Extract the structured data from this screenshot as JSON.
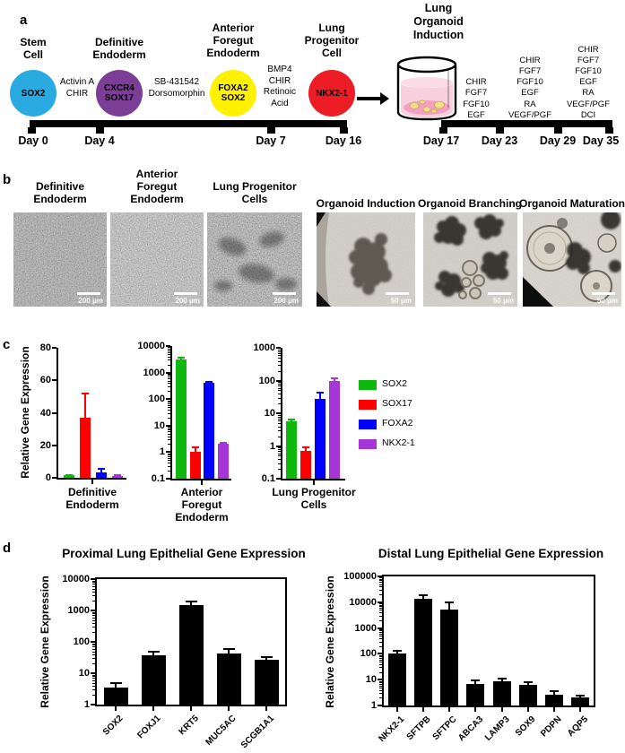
{
  "panels": {
    "a": "a",
    "b": "b",
    "c": "c",
    "d": "d"
  },
  "panel_a": {
    "stages": [
      {
        "title": "Stem\nCell",
        "marker": "SOX2",
        "color": "#29ABE2"
      },
      {
        "title": "Definitive\nEndoderm",
        "marker": "CXCR4\nSOX17",
        "color": "#7C3D97"
      },
      {
        "title": "Anterior\nForegut\nEndoderm",
        "marker": "FOXA2\nSOX2",
        "color": "#FFF100"
      },
      {
        "title": "Lung\nProgenitor\nCell",
        "marker": "NKX2-1",
        "color": "#EE1C25"
      }
    ],
    "treatments": [
      "Activin A\nCHIR",
      "SB-431542\nDorsomorphin",
      "BMP4\nCHIR\nRetinoic\nAcid"
    ],
    "organoid_title": "Lung\nOrganoid\nInduction",
    "factor_columns": [
      [
        "CHIR",
        "FGF7",
        "FGF10",
        "EGF"
      ],
      [
        "CHIR",
        "FGF7",
        "FGF10",
        "EGF",
        "RA",
        "VEGF/PGF"
      ],
      [
        "CHIR",
        "FGF7",
        "FGF10",
        "EGF",
        "RA",
        "VEGF/PGF",
        "DCI"
      ]
    ],
    "timeline1": {
      "days": [
        "Day 0",
        "Day 4",
        "Day 7",
        "Day 16"
      ]
    },
    "timeline2": {
      "days": [
        "Day 17",
        "Day 23",
        "Day 29",
        "Day 35"
      ]
    }
  },
  "panel_b": {
    "monolayers": [
      {
        "label": "Definitive\nEndoderm",
        "scale_bar": "200 μm"
      },
      {
        "label": "Anterior\nForegut\nEndoderm",
        "scale_bar": "200 μm"
      },
      {
        "label": "Lung Progenitor\nCells",
        "scale_bar": "200 μm"
      }
    ],
    "organoids": [
      {
        "label": "Organoid Induction",
        "scale_bar": "50 μm"
      },
      {
        "label": "Organoid Branching",
        "scale_bar": "50 μm"
      },
      {
        "label": "Organoid Maturation",
        "scale_bar": "50 μm"
      }
    ]
  },
  "legend": {
    "position": "right-of-third-chart",
    "entries": [
      {
        "label": "SOX2",
        "color": "#0FB80F"
      },
      {
        "label": "SOX17",
        "color": "#FF0000"
      },
      {
        "label": "FOXA2",
        "color": "#0000FF"
      },
      {
        "label": "NKX2-1",
        "color": "#A535D6"
      }
    ]
  },
  "chart_data": [
    {
      "id": "c-de",
      "type": "bar",
      "scale": "linear",
      "xlabel": "Definitive\nEndoderm",
      "ylabel": "Relative Gene Expression",
      "ylim": [
        0,
        80
      ],
      "yticks": [
        "0",
        "20",
        "40",
        "60",
        "80"
      ],
      "grid": false,
      "series": [
        "SOX2",
        "SOX17",
        "FOXA2",
        "NKX2-1"
      ],
      "colors": [
        "#0FB80F",
        "#FF0000",
        "#0000FF",
        "#A535D6"
      ],
      "values": [
        1.5,
        37,
        3.5,
        1.2
      ],
      "errors": [
        0.4,
        15,
        2,
        0.3
      ]
    },
    {
      "id": "c-afe",
      "type": "bar",
      "scale": "log",
      "xlabel": "Anterior\nForegut\nEndoderm",
      "ylim": [
        0.1,
        10000
      ],
      "yticks": [
        "0.1",
        "1",
        "10",
        "100",
        "1000",
        "10000"
      ],
      "grid": false,
      "series": [
        "SOX2",
        "SOX17",
        "FOXA2",
        "NKX2-1"
      ],
      "colors": [
        "#0FB80F",
        "#FF0000",
        "#0000FF",
        "#A535D6"
      ],
      "values": [
        3000,
        1,
        400,
        2
      ],
      "errors": [
        500,
        0.5,
        60,
        0.3
      ]
    },
    {
      "id": "c-lpc",
      "type": "bar",
      "scale": "log",
      "xlabel": "Lung Progenitor\nCells",
      "ylim": [
        0.1,
        1000
      ],
      "yticks": [
        "0.1",
        "1",
        "10",
        "100",
        "1000"
      ],
      "grid": false,
      "series": [
        "SOX2",
        "SOX17",
        "FOXA2",
        "NKX2-1"
      ],
      "colors": [
        "#0FB80F",
        "#FF0000",
        "#0000FF",
        "#A535D6"
      ],
      "values": [
        5.5,
        0.7,
        28,
        95
      ],
      "errors": [
        0.8,
        0.2,
        14,
        22
      ]
    },
    {
      "id": "d-prox",
      "type": "bar",
      "scale": "log",
      "title": "Proximal Lung Epithelial Gene Expression",
      "ylabel": "Relative Gene Expression",
      "ylim": [
        1,
        10000
      ],
      "yticks": [
        "1",
        "10",
        "100",
        "1000",
        "10000"
      ],
      "grid": false,
      "categories": [
        "SOX2",
        "FOXJ1",
        "KRT5",
        "MUC5AC",
        "SCGB1A1"
      ],
      "values": [
        3.5,
        38,
        1500,
        42,
        26
      ],
      "errors": [
        1.3,
        12,
        400,
        18,
        7
      ],
      "bar_color": "#000000"
    },
    {
      "id": "d-dist",
      "type": "bar",
      "scale": "log",
      "title": "Distal Lung Epithelial Gene Expression",
      "ylabel": "Relative Gene Expression",
      "ylim": [
        1,
        100000
      ],
      "yticks": [
        "1",
        "10",
        "100",
        "1000",
        "10000",
        "100000"
      ],
      "grid": false,
      "categories": [
        "NKX2-1",
        "SFTPB",
        "SFTPC",
        "ABCA3",
        "LAMP3",
        "SOX9",
        "PDPN",
        "AQP5"
      ],
      "values": [
        105,
        14000,
        5000,
        7,
        9,
        6.5,
        2.7,
        2
      ],
      "errors": [
        25,
        5000,
        5000,
        2.5,
        2,
        1.5,
        0.8,
        0.4
      ],
      "bar_color": "#000000"
    }
  ]
}
